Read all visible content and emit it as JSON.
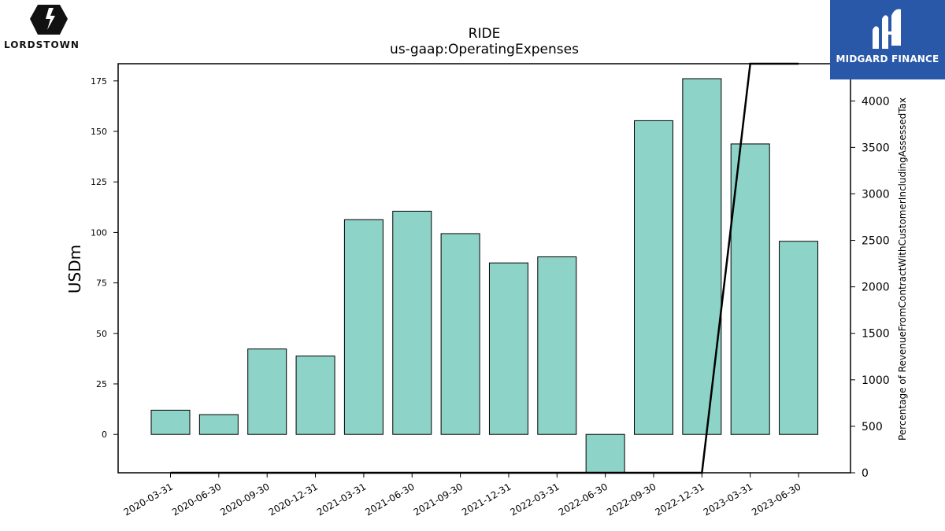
{
  "logos": {
    "left_text": "LORDSTOWN",
    "right_text": "MIDGARD FINANCE"
  },
  "colors": {
    "bar_fill": "#8dd3c7",
    "bar_stroke": "#000000",
    "line": "#000000",
    "logo_right_bg": "#2a58a8"
  },
  "chart_data": {
    "type": "bar",
    "title": "RIDE",
    "subtitle": "us-gaap:OperatingExpenses",
    "ylabel": "USDm",
    "y2label": "Percentage of RevenueFromContractWithCustomerIncludingAssessedTax",
    "categories": [
      "2020-03-31",
      "2020-06-30",
      "2020-09-30",
      "2020-12-31",
      "2021-03-31",
      "2021-06-30",
      "2021-09-30",
      "2021-12-31",
      "2022-03-31",
      "2022-06-30",
      "2022-09-30",
      "2022-12-31",
      "2023-03-31",
      "2023-06-30"
    ],
    "series": [
      {
        "values": [
          12.0,
          9.8,
          42.3,
          38.8,
          106.3,
          110.5,
          99.4,
          84.9,
          87.9,
          -19.0,
          155.3,
          176.1,
          143.8,
          95.6
        ]
      }
    ],
    "ylim": [
      -19,
      183.5
    ],
    "yticks": [
      0,
      25,
      50,
      75,
      100,
      125,
      150,
      175
    ],
    "line_series": {
      "x": [
        "2020-03-31",
        "2020-06-30",
        "2020-09-30",
        "2020-12-31",
        "2021-03-31",
        "2021-06-30",
        "2021-09-30",
        "2021-12-31",
        "2022-03-31",
        "2022-06-30",
        "2022-09-30",
        "2022-12-31",
        "2023-03-31",
        "2023-06-30"
      ],
      "values": [
        0,
        0,
        0,
        0,
        0,
        0,
        0,
        0,
        0,
        0,
        0,
        0,
        4400,
        4400
      ]
    },
    "y2lim": [
      0,
      4400
    ],
    "y2ticks": [
      0,
      500,
      1000,
      1500,
      2000,
      2500,
      3000,
      3500,
      4000
    ],
    "grid": false
  }
}
